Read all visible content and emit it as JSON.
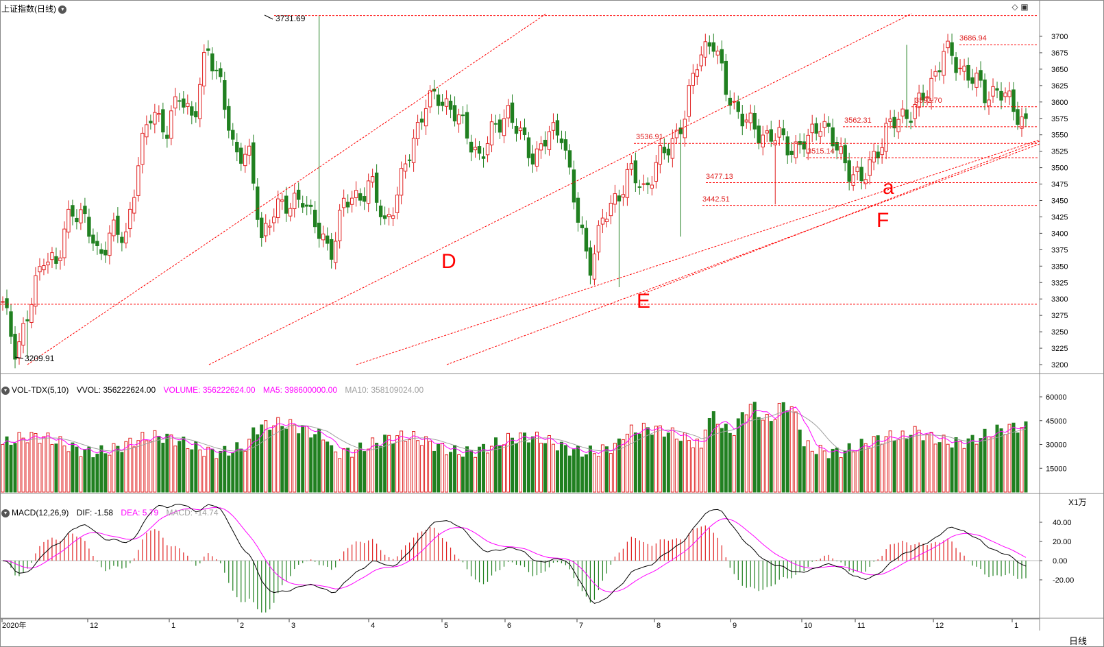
{
  "header": {
    "title": "上证指数(日线)",
    "vol_title": "VOL-TDX(5,10)",
    "vol_vvol": "VVOL: 356222624.00",
    "vol_volume": "VOLUME: 356222624.00",
    "vol_ma5": "MA5: 398600000.00",
    "vol_ma10": "MA10: 358109024.00",
    "vol_unit": "X1万",
    "macd_title": "MACD(12,26,9)",
    "macd_dif": "DIF: -1.58",
    "macd_dea": "DEA: 5.79",
    "macd_macd": "MACD: -14.74",
    "period": "日线"
  },
  "colors": {
    "up": "#e02020",
    "down": "#208020",
    "line": "#ff0000",
    "ma5": "#ff00ff",
    "ma10": "#a0a0a0",
    "dif": "#000000",
    "dea": "#ff00ff"
  },
  "chart_data": [
    {
      "type": "candlestick",
      "title": "上证指数(日线)",
      "y_ticks": [
        3200,
        3225,
        3250,
        3275,
        3300,
        3325,
        3350,
        3375,
        3400,
        3425,
        3450,
        3475,
        3500,
        3525,
        3550,
        3575,
        3600,
        3625,
        3650,
        3675,
        3700
      ],
      "ylim": [
        3195,
        3745
      ],
      "x_tick_labels": [
        "2020年",
        "12",
        "1",
        "2",
        "3",
        "4",
        "5",
        "6",
        "7",
        "8",
        "9",
        "10",
        "11",
        "12",
        "1"
      ],
      "price_labels": [
        "3731.69",
        "3209.91",
        "3536.91",
        "3477.13",
        "3442.51",
        "3562.31",
        "3515.14",
        "3592.70",
        "3686.94"
      ],
      "horizontal_levels": [
        3731.69,
        3686.94,
        3592.7,
        3562.31,
        3536.91,
        3515.14,
        3477.13,
        3442.51,
        3292
      ],
      "annotations": [
        "D",
        "E",
        "F",
        "a"
      ],
      "anchors": [
        [
          3300,
          3280
        ],
        [
          3230,
          3210
        ],
        [
          3295,
          3275
        ],
        [
          3390,
          3350
        ],
        [
          3370,
          3330
        ],
        [
          3460,
          3425
        ],
        [
          3440,
          3400
        ],
        [
          3380,
          3350
        ],
        [
          3420,
          3390
        ],
        [
          3410,
          3370
        ],
        [
          3530,
          3505
        ],
        [
          3610,
          3570
        ],
        [
          3570,
          3540
        ],
        [
          3632,
          3590
        ],
        [
          3590,
          3560
        ],
        [
          3712,
          3650
        ],
        [
          3660,
          3600
        ],
        [
          3520,
          3500
        ],
        [
          3550,
          3520
        ],
        [
          3420,
          3340
        ],
        [
          3460,
          3440
        ],
        [
          3440,
          3430
        ],
        [
          3470,
          3450
        ],
        [
          3430,
          3380
        ],
        [
          3380,
          3360
        ],
        [
          3460,
          3430
        ],
        [
          3470,
          3440
        ],
        [
          3485,
          3470
        ],
        [
          3425,
          3400
        ],
        [
          3480,
          3450
        ],
        [
          3550,
          3520
        ],
        [
          3610,
          3590
        ],
        [
          3615,
          3595
        ],
        [
          3600,
          3580
        ],
        [
          3560,
          3540
        ],
        [
          3520,
          3510
        ],
        [
          3575,
          3540
        ],
        [
          3595,
          3580
        ],
        [
          3560,
          3530
        ],
        [
          3530,
          3500
        ],
        [
          3560,
          3540
        ],
        [
          3570,
          3545
        ],
        [
          3470,
          3400
        ],
        [
          3370,
          3330
        ],
        [
          3440,
          3400
        ],
        [
          3470,
          3440
        ],
        [
          3510,
          3480
        ],
        [
          3480,
          3450
        ],
        [
          3520,
          3500
        ],
        [
          3550,
          3520
        ],
        [
          3600,
          3560
        ],
        [
          3690,
          3650
        ],
        [
          3715,
          3680
        ],
        [
          3640,
          3600
        ],
        [
          3600,
          3560
        ],
        [
          3580,
          3540
        ],
        [
          3565,
          3530
        ],
        [
          3560,
          3530
        ],
        [
          3540,
          3515
        ],
        [
          3560,
          3520
        ],
        [
          3590,
          3560
        ],
        [
          3545,
          3520
        ],
        [
          3510,
          3490
        ],
        [
          3485,
          3470
        ],
        [
          3540,
          3510
        ],
        [
          3575,
          3550
        ],
        [
          3590,
          3570
        ],
        [
          3600,
          3580
        ],
        [
          3640,
          3610
        ],
        [
          3690,
          3670
        ],
        [
          3670,
          3640
        ],
        [
          3650,
          3630
        ],
        [
          3620,
          3600
        ],
        [
          3630,
          3610
        ],
        [
          3600,
          3585
        ],
        [
          3575,
          3560
        ]
      ]
    },
    {
      "type": "bar",
      "title": "VOL-TDX(5,10)",
      "y_ticks": [
        15000,
        30000,
        45000,
        60000
      ],
      "ylim": [
        0,
        65000
      ],
      "unit": "X1万"
    },
    {
      "type": "bar",
      "title": "MACD(12,26,9)",
      "y_ticks": [
        -20,
        0,
        20,
        40
      ],
      "ylim": [
        -55,
        63
      ],
      "series_names": [
        "DIF",
        "DEA",
        "MACD"
      ]
    }
  ]
}
